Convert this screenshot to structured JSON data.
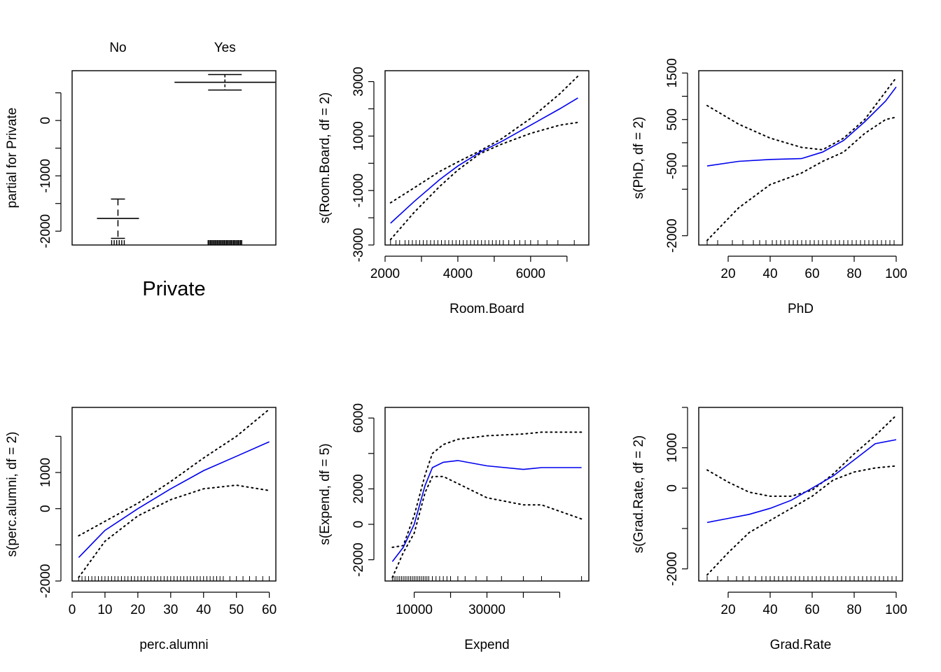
{
  "figure": {
    "description_free": true
  },
  "chart_data": [
    {
      "id": "private",
      "type": "box",
      "xlabel": "Private",
      "ylabel": "partial for Private",
      "categories": [
        "No",
        "Yes"
      ],
      "ylim": [
        -2250,
        900
      ],
      "yticks": [
        -2000,
        -1000,
        0
      ],
      "yticks_unlabeled": [
        500,
        -500,
        -1500
      ],
      "levels": [
        {
          "name": "No",
          "fit": -1770,
          "upper": -1420,
          "lower": -2130
        },
        {
          "name": "Yes",
          "fit": 690,
          "upper": 830,
          "lower": 550
        }
      ],
      "rug_counts": [
        6,
        30
      ]
    },
    {
      "id": "room_board",
      "type": "line",
      "xlabel": "Room.Board",
      "ylabel": "s(Room.Board, df = 2)",
      "xlim": [
        2000,
        7600
      ],
      "ylim": [
        -3000,
        3400
      ],
      "xticks": [
        2000,
        4000,
        6000
      ],
      "xticks_unlabeled": [
        3000,
        5000,
        7000
      ],
      "yticks": [
        -3000,
        -1000,
        1000,
        3000
      ],
      "yticks_unlabeled": [
        -2000,
        0,
        2000
      ],
      "x": [
        2150,
        2800,
        3500,
        4000,
        4600,
        5200,
        6000,
        6800,
        7300
      ],
      "fit": [
        -2200,
        -1400,
        -600,
        -100,
        400,
        800,
        1400,
        2000,
        2400
      ],
      "upper": [
        -1450,
        -900,
        -300,
        50,
        450,
        900,
        1650,
        2550,
        3200
      ],
      "lower": [
        -2800,
        -1800,
        -850,
        -250,
        350,
        700,
        1100,
        1400,
        1500
      ],
      "rug": [
        2150,
        2300,
        2400,
        2550,
        2650,
        2750,
        2850,
        2950,
        3050,
        3150,
        3250,
        3350,
        3450,
        3550,
        3650,
        3750,
        3850,
        3950,
        4050,
        4150,
        4250,
        4350,
        4450,
        4550,
        4650,
        4750,
        4850,
        4950,
        5050,
        5150,
        5250,
        5400,
        5550,
        5700,
        5850,
        6000,
        6200,
        6450,
        6750,
        7200
      ]
    },
    {
      "id": "phd",
      "type": "line",
      "xlabel": "PhD",
      "ylabel": "s(PhD, df = 2)",
      "xlim": [
        6,
        103
      ],
      "ylim": [
        -2200,
        1550
      ],
      "xticks": [
        20,
        40,
        60,
        80,
        100
      ],
      "yticks": [
        -2000,
        -500,
        500,
        1500
      ],
      "yticks_unlabeled": [
        1000,
        0,
        -1000
      ],
      "x": [
        10,
        25,
        40,
        55,
        65,
        75,
        85,
        95,
        100
      ],
      "fit": [
        -500,
        -400,
        -360,
        -340,
        -200,
        50,
        450,
        900,
        1200
      ],
      "upper": [
        800,
        400,
        100,
        -100,
        -150,
        100,
        500,
        1100,
        1400
      ],
      "lower": [
        -2100,
        -1400,
        -900,
        -650,
        -400,
        -200,
        200,
        500,
        550
      ],
      "rug": [
        10,
        15,
        22,
        27,
        32,
        35,
        38,
        41,
        43,
        45,
        47,
        49,
        51,
        53,
        55,
        57,
        59,
        61,
        63,
        65,
        67,
        69,
        71,
        73,
        75,
        77,
        79,
        81,
        83,
        85,
        87,
        89,
        91,
        93,
        95,
        97,
        99
      ]
    },
    {
      "id": "perc_alumni",
      "type": "line",
      "xlabel": "perc.alumni",
      "ylabel": "s(perc.alumni, df = 2)",
      "xlim": [
        0,
        62
      ],
      "ylim": [
        -2000,
        2800
      ],
      "xticks": [
        0,
        10,
        20,
        30,
        40,
        50,
        60
      ],
      "yticks": [
        -2000,
        0,
        1000
      ],
      "yticks_unlabeled": [
        -1000,
        2000
      ],
      "x": [
        2,
        10,
        20,
        30,
        40,
        50,
        60
      ],
      "fit": [
        -1350,
        -600,
        0,
        550,
        1050,
        1450,
        1850
      ],
      "upper": [
        -750,
        -350,
        150,
        750,
        1400,
        2000,
        2750
      ],
      "lower": [
        -1900,
        -900,
        -200,
        250,
        550,
        650,
        500
      ],
      "rug": [
        2,
        3,
        4,
        5,
        6,
        7,
        8,
        9,
        10,
        11,
        12,
        13,
        14,
        15,
        16,
        17,
        18,
        19,
        20,
        21,
        22,
        23,
        24,
        25,
        26,
        27,
        28,
        29,
        30,
        31,
        32,
        33,
        34,
        35,
        36,
        37,
        38,
        39,
        40,
        41,
        42,
        43,
        44,
        45,
        46,
        48,
        50,
        52,
        54,
        56,
        58,
        60
      ]
    },
    {
      "id": "expend",
      "type": "line",
      "xlabel": "Expend",
      "ylabel": "s(Expend, df = 5)",
      "xlim": [
        2000,
        58000
      ],
      "ylim": [
        -3200,
        6600
      ],
      "xticks": [
        10000,
        30000
      ],
      "xticks_unlabeled": [
        20000,
        40000,
        50000
      ],
      "yticks": [
        -2000,
        0,
        2000,
        6000
      ],
      "yticks_unlabeled": [
        4000
      ],
      "x": [
        4000,
        7000,
        10000,
        13000,
        15000,
        18000,
        22000,
        30000,
        40000,
        45000,
        56000
      ],
      "fit": [
        -2100,
        -1300,
        0,
        2200,
        3200,
        3500,
        3600,
        3300,
        3100,
        3200,
        3200
      ],
      "upper": [
        -1300,
        -1200,
        500,
        2800,
        4000,
        4500,
        4800,
        5000,
        5100,
        5200,
        5200
      ],
      "lower": [
        -3000,
        -1600,
        -500,
        1800,
        2700,
        2700,
        2300,
        1500,
        1100,
        1100,
        300
      ],
      "rug": [
        4000,
        4500,
        5000,
        5500,
        6000,
        6500,
        7000,
        7500,
        8000,
        8500,
        9000,
        9500,
        10000,
        10500,
        11000,
        11500,
        12000,
        12500,
        13000,
        13500,
        14000,
        15000,
        16000,
        17000,
        18000,
        19000,
        20000,
        22000,
        24000,
        27000,
        30000,
        34000,
        40000,
        45000,
        56000
      ]
    },
    {
      "id": "grad_rate",
      "type": "line",
      "xlabel": "Grad.Rate",
      "ylabel": "s(Grad.Rate, df = 2)",
      "xlim": [
        6,
        103
      ],
      "ylim": [
        -2300,
        2000
      ],
      "xticks": [
        20,
        40,
        60,
        80,
        100
      ],
      "yticks": [
        -2000,
        0,
        1000
      ],
      "yticks_unlabeled": [
        -1000,
        2000
      ],
      "x": [
        10,
        20,
        30,
        40,
        50,
        60,
        70,
        80,
        90,
        100
      ],
      "fit": [
        -850,
        -750,
        -650,
        -500,
        -300,
        0,
        300,
        700,
        1100,
        1200
      ],
      "upper": [
        450,
        150,
        -100,
        -200,
        -200,
        -50,
        350,
        850,
        1300,
        1800
      ],
      "lower": [
        -2150,
        -1600,
        -1100,
        -800,
        -500,
        -200,
        200,
        400,
        500,
        550
      ],
      "rug": [
        10,
        15,
        20,
        24,
        27,
        30,
        33,
        36,
        38,
        40,
        42,
        44,
        46,
        48,
        50,
        52,
        54,
        56,
        58,
        60,
        62,
        64,
        66,
        68,
        70,
        72,
        74,
        76,
        78,
        80,
        82,
        84,
        86,
        88,
        90,
        92,
        94,
        96,
        98,
        100
      ]
    }
  ]
}
